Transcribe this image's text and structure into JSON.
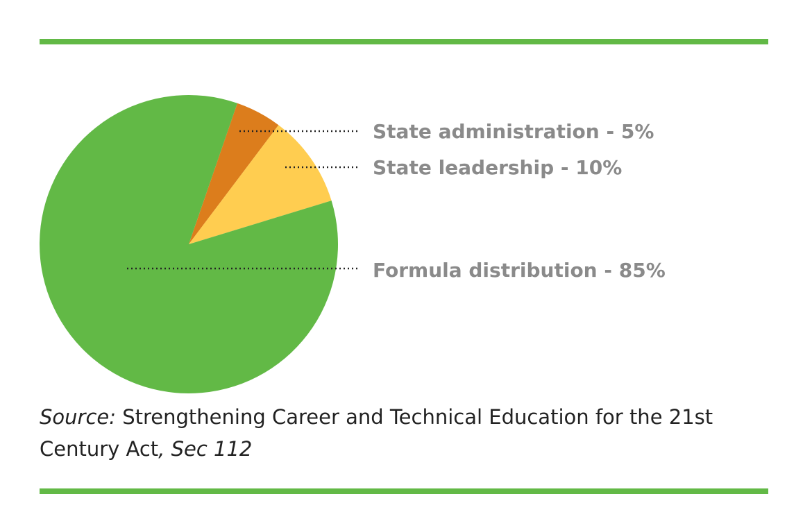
{
  "colors": {
    "accent": "#62b946",
    "formula": "#62b946",
    "leadership": "#ffcd50",
    "administration": "#dc7d1c",
    "label_text": "#8a8a8a",
    "body_text": "#222222"
  },
  "chart_data": {
    "type": "pie",
    "start_angle_deg": 19,
    "slices": [
      {
        "label": "State administration - 5%",
        "value": 5,
        "color": "#dc7d1c"
      },
      {
        "label": "State leadership - 10%",
        "value": 10,
        "color": "#ffcd50"
      },
      {
        "label": "Formula distribution - 85%",
        "value": 85,
        "color": "#62b946"
      }
    ]
  },
  "source": {
    "prefix": "Source:",
    "text": " Strengthening Career and Technical Education for the 21st Century Act",
    "comma": ",",
    "section": " Sec 112"
  }
}
